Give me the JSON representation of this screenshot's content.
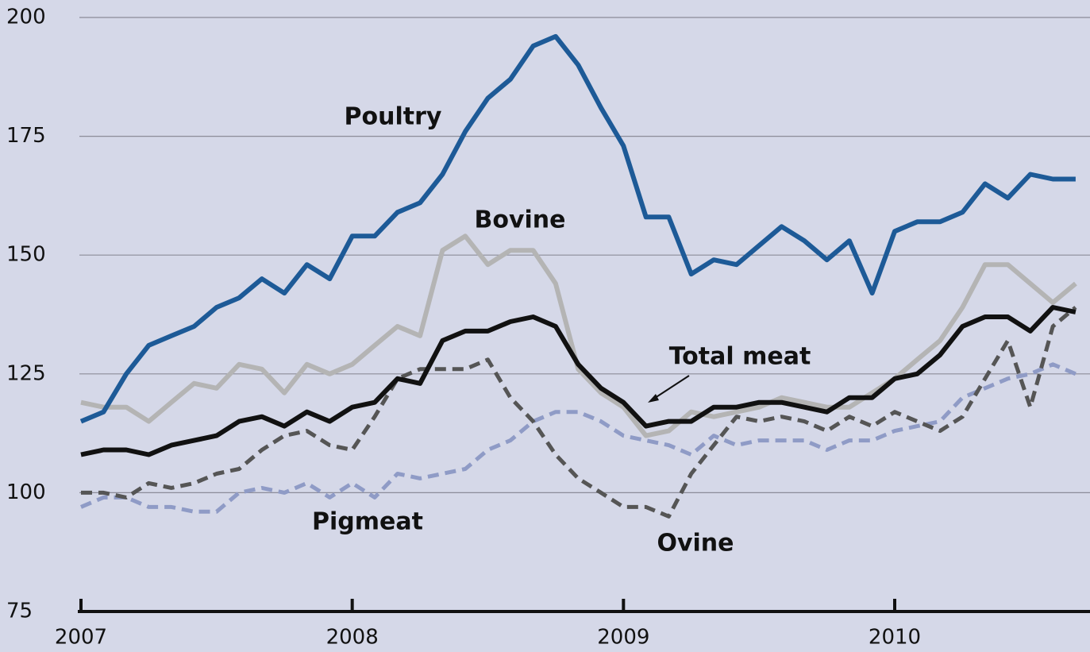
{
  "chart_data": {
    "type": "line",
    "x": [
      2007,
      2007.083,
      2007.167,
      2007.25,
      2007.333,
      2007.417,
      2007.5,
      2007.583,
      2007.667,
      2007.75,
      2007.833,
      2007.917,
      2008,
      2008.083,
      2008.167,
      2008.25,
      2008.333,
      2008.417,
      2008.5,
      2008.583,
      2008.667,
      2008.75,
      2008.833,
      2008.917,
      2009,
      2009.083,
      2009.167,
      2009.25,
      2009.333,
      2009.417,
      2009.5,
      2009.583,
      2009.667,
      2009.75,
      2009.833,
      2009.917,
      2010,
      2010.083,
      2010.167,
      2010.25,
      2010.333,
      2010.417,
      2010.5,
      2010.583,
      2010.667
    ],
    "series": [
      {
        "name": "Poultry",
        "color": "#1d5a97",
        "dashed": false,
        "values": [
          115,
          117,
          125,
          131,
          133,
          135,
          139,
          141,
          145,
          142,
          148,
          145,
          154,
          154,
          159,
          161,
          167,
          176,
          183,
          187,
          194,
          196,
          190,
          181,
          173,
          158,
          158,
          146,
          149,
          148,
          152,
          156,
          153,
          149,
          153,
          142,
          155,
          157,
          157,
          159,
          165,
          162,
          167,
          166,
          166
        ]
      },
      {
        "name": "Bovine",
        "color": "#b4b4b4",
        "dashed": false,
        "values": [
          119,
          118,
          118,
          115,
          119,
          123,
          122,
          127,
          126,
          121,
          127,
          125,
          127,
          131,
          135,
          133,
          151,
          154,
          148,
          151,
          151,
          144,
          126,
          121,
          118,
          112,
          113,
          117,
          116,
          117,
          118,
          120,
          119,
          118,
          118,
          121,
          124,
          128,
          132,
          139,
          148,
          148,
          144,
          140,
          144
        ]
      },
      {
        "name": "Total meat",
        "color": "#111111",
        "dashed": false,
        "values": [
          108,
          109,
          109,
          108,
          110,
          111,
          112,
          115,
          116,
          114,
          117,
          115,
          118,
          119,
          124,
          123,
          132,
          134,
          134,
          136,
          137,
          135,
          127,
          122,
          119,
          114,
          115,
          115,
          118,
          118,
          119,
          119,
          118,
          117,
          120,
          120,
          124,
          125,
          129,
          135,
          137,
          137,
          134,
          139,
          138
        ]
      },
      {
        "name": "Ovine",
        "color": "#555555",
        "dashed": true,
        "values": [
          100,
          100,
          99,
          102,
          101,
          102,
          104,
          105,
          109,
          112,
          113,
          110,
          109,
          116,
          124,
          126,
          126,
          126,
          128,
          120,
          115,
          108,
          103,
          100,
          97,
          97,
          95,
          104,
          110,
          116,
          115,
          116,
          115,
          113,
          116,
          114,
          117,
          115,
          113,
          116,
          124,
          132,
          118,
          135,
          139
        ]
      },
      {
        "name": "Pigmeat",
        "color": "#8f9bc6",
        "dashed": true,
        "values": [
          97,
          99,
          99,
          97,
          97,
          96,
          96,
          100,
          101,
          100,
          102,
          99,
          102,
          99,
          104,
          103,
          104,
          105,
          109,
          111,
          115,
          117,
          117,
          115,
          112,
          111,
          110,
          108,
          112,
          110,
          111,
          111,
          111,
          109,
          111,
          111,
          113,
          114,
          115,
          120,
          122,
          124,
          125,
          127,
          125
        ]
      }
    ],
    "xlim": [
      2007,
      2010.72
    ],
    "xticks": [
      2007,
      2008,
      2009,
      2010
    ],
    "ylim": [
      75,
      200
    ],
    "yticks": [
      75,
      100,
      125,
      150,
      175,
      200
    ],
    "grid": true
  }
}
